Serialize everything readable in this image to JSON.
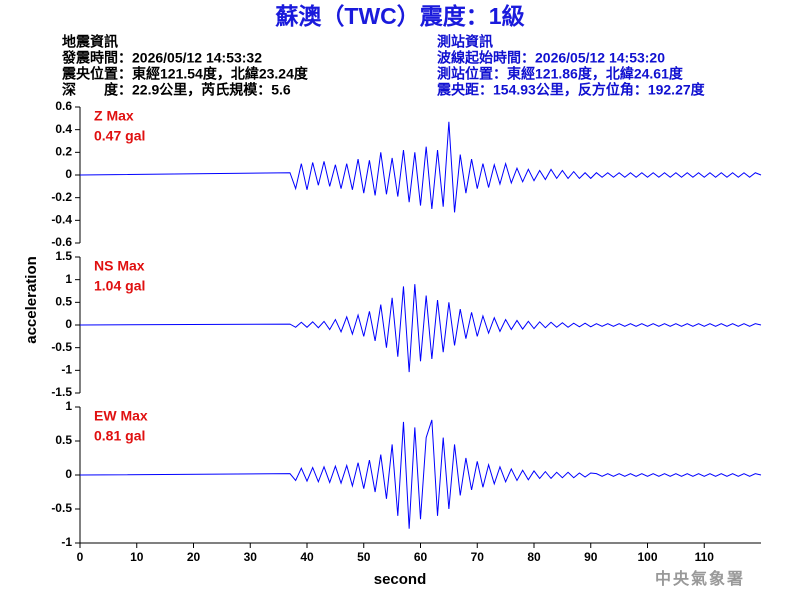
{
  "title": "蘇澳（TWC）震度：1級",
  "left_info": [
    "地震資訊",
    "發震時間：2026/05/12 14:53:32",
    "震央位置：東經121.54度，北緯23.24度",
    "深　　度：22.9公里，芮氏規模：5.6"
  ],
  "right_info": [
    "測站資訊",
    "波線起始時間：2026/05/12 14:53:20",
    "測站位置：東經121.86度，北緯24.61度",
    "震央距：154.93公里，反方位角：192.27度"
  ],
  "footer": "中央氣象署",
  "chart_data": {
    "type": "line",
    "xlabel": "second",
    "ylabel": "acceleration",
    "xlim": [
      0,
      120
    ],
    "xticks": [
      0,
      10,
      20,
      30,
      40,
      50,
      60,
      70,
      80,
      90,
      100,
      110
    ],
    "x": [
      0,
      37,
      38,
      39,
      40,
      41,
      42,
      43,
      44,
      45,
      46,
      47,
      48,
      49,
      50,
      51,
      52,
      53,
      54,
      55,
      56,
      57,
      58,
      59,
      60,
      61,
      62,
      63,
      64,
      65,
      66,
      67,
      68,
      69,
      70,
      71,
      72,
      73,
      74,
      75,
      76,
      77,
      78,
      79,
      80,
      81,
      82,
      83,
      84,
      85,
      86,
      87,
      88,
      89,
      90,
      91,
      92,
      93,
      94,
      95,
      96,
      97,
      98,
      99,
      100,
      101,
      102,
      103,
      104,
      105,
      106,
      107,
      108,
      109,
      110,
      111,
      112,
      113,
      114,
      115,
      116,
      117,
      118,
      119,
      120
    ],
    "panels": [
      {
        "annotations": [
          "Z Max",
          "0.47 gal"
        ],
        "ylim": [
          -0.6,
          0.6
        ],
        "yticks": [
          -0.6,
          -0.4,
          -0.2,
          0,
          0.2,
          0.4,
          0.6
        ],
        "series": [
          {
            "color": "#0000ff",
            "values": [
              0,
              0.02,
              -0.12,
              0.1,
              -0.13,
              0.11,
              -0.09,
              0.12,
              -0.1,
              0.09,
              -0.12,
              0.1,
              -0.13,
              0.14,
              -0.16,
              0.13,
              -0.18,
              0.2,
              -0.17,
              0.15,
              -0.19,
              0.22,
              -0.24,
              0.2,
              -0.27,
              0.25,
              -0.3,
              0.22,
              -0.28,
              0.47,
              -0.33,
              0.18,
              -0.16,
              0.14,
              -0.12,
              0.1,
              -0.11,
              0.09,
              -0.08,
              0.1,
              -0.07,
              0.06,
              -0.06,
              0.05,
              -0.05,
              0.04,
              -0.04,
              0.05,
              -0.03,
              0.04,
              -0.03,
              0.03,
              -0.03,
              0.02,
              -0.03,
              0.02,
              -0.02,
              0.02,
              -0.02,
              0.02,
              -0.02,
              0.02,
              -0.02,
              0.02,
              -0.02,
              0.02,
              -0.02,
              0.02,
              -0.02,
              0.02,
              -0.02,
              0.02,
              -0.02,
              0.02,
              -0.02,
              0.02,
              -0.02,
              0.02,
              -0.02,
              0.02,
              -0.02,
              0.02,
              -0.02,
              0.02,
              0
            ]
          }
        ]
      },
      {
        "annotations": [
          "NS Max",
          "1.04 gal"
        ],
        "ylim": [
          -1.5,
          1.5
        ],
        "yticks": [
          -1.5,
          -1,
          -0.5,
          0,
          0.5,
          1,
          1.5
        ],
        "series": [
          {
            "color": "#0000ff",
            "values": [
              0,
              0.02,
              -0.05,
              0.06,
              -0.05,
              0.07,
              -0.06,
              0.08,
              -0.1,
              0.12,
              -0.15,
              0.18,
              -0.2,
              0.22,
              -0.25,
              0.3,
              -0.35,
              0.45,
              -0.5,
              0.6,
              -0.7,
              0.85,
              -1.04,
              0.9,
              -0.8,
              0.65,
              -0.75,
              0.55,
              -0.6,
              0.5,
              -0.45,
              0.35,
              -0.3,
              0.28,
              -0.25,
              0.2,
              -0.18,
              0.16,
              -0.14,
              0.12,
              -0.1,
              0.1,
              -0.09,
              0.08,
              -0.08,
              0.07,
              -0.06,
              0.06,
              -0.05,
              0.05,
              -0.05,
              0.04,
              -0.04,
              0.04,
              -0.04,
              0.03,
              -0.03,
              0.03,
              -0.03,
              0.03,
              -0.03,
              0.03,
              -0.03,
              0.03,
              -0.03,
              0.03,
              -0.03,
              0.03,
              -0.03,
              0.03,
              -0.03,
              0.03,
              -0.03,
              0.03,
              -0.03,
              0.03,
              -0.03,
              0.03,
              -0.03,
              0.03,
              -0.03,
              0.03,
              -0.03,
              0.03,
              0
            ]
          }
        ]
      },
      {
        "annotations": [
          "EW Max",
          "0.81 gal"
        ],
        "ylim": [
          -1,
          1
        ],
        "yticks": [
          -1,
          -0.5,
          0,
          0.5,
          1
        ],
        "series": [
          {
            "color": "#0000ff",
            "values": [
              0,
              0.02,
              -0.08,
              0.1,
              -0.09,
              0.11,
              -0.1,
              0.12,
              -0.11,
              0.13,
              -0.12,
              0.14,
              -0.16,
              0.18,
              -0.2,
              0.22,
              -0.25,
              0.3,
              -0.35,
              0.45,
              -0.6,
              0.78,
              -0.79,
              0.7,
              -0.65,
              0.55,
              0.81,
              -0.6,
              0.55,
              -0.5,
              0.45,
              -0.3,
              0.25,
              -0.22,
              0.2,
              -0.18,
              0.15,
              -0.13,
              0.12,
              -0.1,
              0.09,
              -0.08,
              0.07,
              -0.07,
              0.06,
              -0.05,
              0.05,
              -0.05,
              0.04,
              -0.04,
              0.04,
              -0.04,
              0.03,
              -0.03,
              0.03,
              0.02,
              -0.02,
              0.02,
              -0.02,
              0.02,
              -0.02,
              0.02,
              -0.02,
              0.02,
              -0.02,
              0.02,
              -0.02,
              0.02,
              -0.02,
              0.02,
              -0.02,
              0.02,
              -0.02,
              0.02,
              -0.02,
              0.02,
              -0.02,
              0.02,
              -0.02,
              0.02,
              -0.02,
              0.02,
              -0.02,
              0.02,
              0
            ]
          }
        ]
      }
    ]
  }
}
